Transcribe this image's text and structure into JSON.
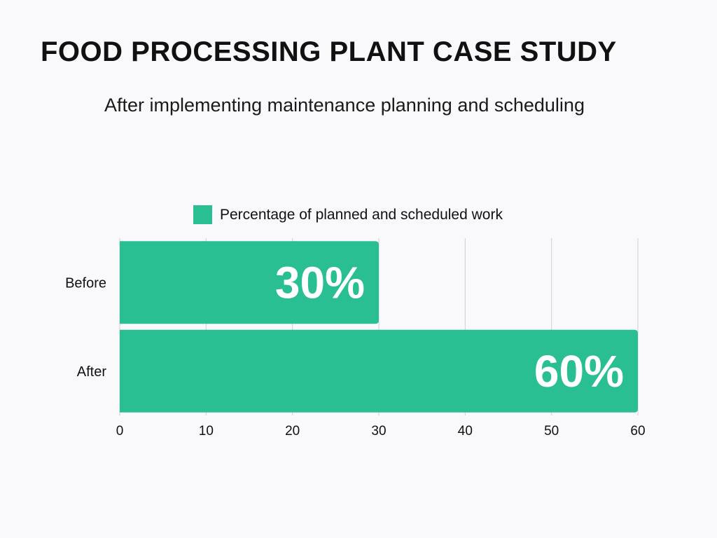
{
  "title": "FOOD PROCESSING PLANT CASE STUDY",
  "subtitle": "After implementing maintenance planning and scheduling",
  "colors": {
    "bar": "#2abf93",
    "grid": "#cfcfd4",
    "text": "#111111",
    "label": "#ffffff"
  },
  "chart_data": {
    "type": "bar",
    "orientation": "horizontal",
    "categories": [
      "Before",
      "After"
    ],
    "series": [
      {
        "name": "Percentage of planned and scheduled work",
        "values": [
          30,
          60
        ],
        "data_labels": [
          "30%",
          "60%"
        ]
      }
    ],
    "xlim": [
      0,
      60
    ],
    "x_ticks": [
      "0",
      "10",
      "20",
      "30",
      "40",
      "50",
      "60"
    ],
    "grid": "vertical",
    "legend_position": "top"
  }
}
